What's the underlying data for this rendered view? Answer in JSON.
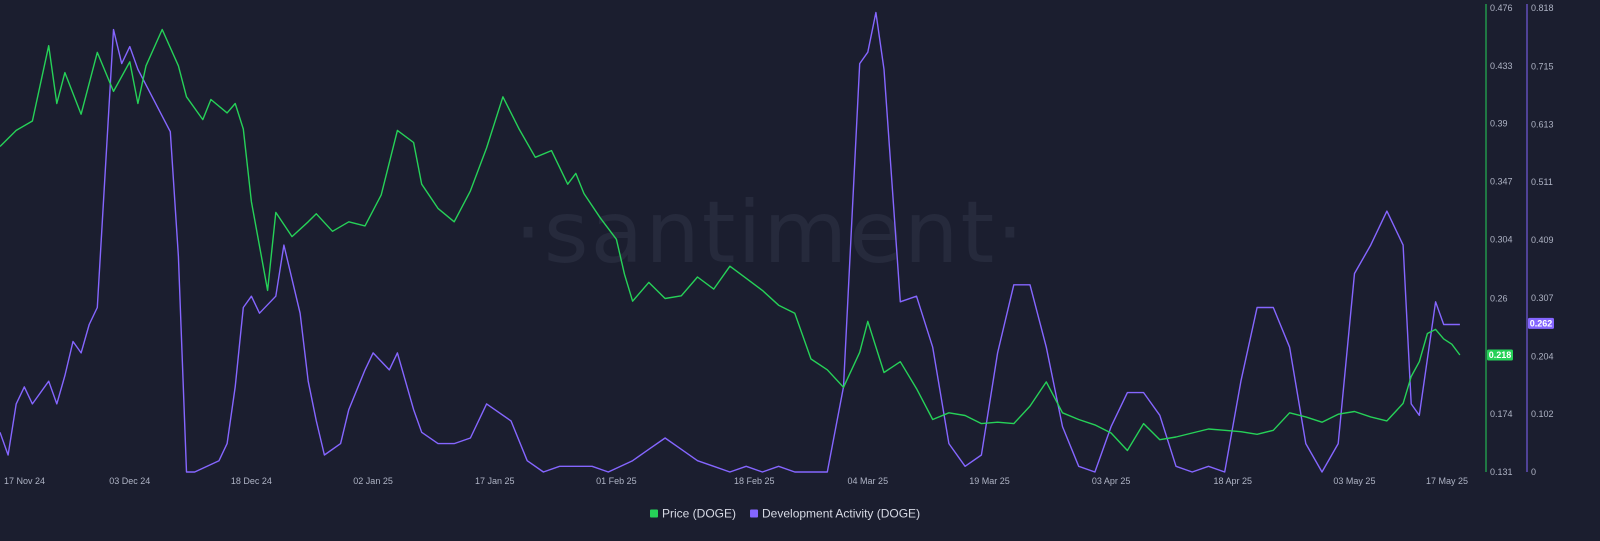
{
  "watermark": "·santiment·",
  "colors": {
    "background": "#1b1e2f",
    "price": "#26d158",
    "dev_activity": "#8566ff",
    "axis_price": "#26d158",
    "axis_dev": "#8566ff"
  },
  "chart_data": {
    "type": "line",
    "title": "",
    "x_tick_labels": [
      "17 Nov 24",
      "03 Dec 24",
      "18 Dec 24",
      "02 Jan 25",
      "17 Jan 25",
      "01 Feb 25",
      "18 Feb 25",
      "04 Mar 25",
      "19 Mar 25",
      "03 Apr 25",
      "18 Apr 25",
      "03 May 25",
      "17 May 25"
    ],
    "x_range": [
      "2024-11-17",
      "2025-05-17"
    ],
    "grid": false,
    "legend_placement": "bottom-center",
    "price_axis": {
      "side": "right",
      "ylim": [
        0.131,
        0.476
      ],
      "ticks": [
        "0.476",
        "0.433",
        "0.39",
        "0.347",
        "0.304",
        "0.26",
        "0.217",
        "0.174",
        "0.131"
      ]
    },
    "dev_axis": {
      "side": "right",
      "ylim": [
        0,
        0.818
      ],
      "ticks": [
        "0.818",
        "0.715",
        "0.613",
        "0.511",
        "0.409",
        "0.307",
        "0.204",
        "0.102",
        "0"
      ]
    },
    "current_values": {
      "price": "0.218",
      "dev_activity": "0.262"
    },
    "series": [
      {
        "name": "Price (DOGE)",
        "axis": "price",
        "x": [
          "2024-11-17",
          "2024-11-19",
          "2024-11-21",
          "2024-11-23",
          "2024-11-24",
          "2024-11-25",
          "2024-11-27",
          "2024-11-29",
          "2024-12-01",
          "2024-12-03",
          "2024-12-04",
          "2024-12-05",
          "2024-12-07",
          "2024-12-09",
          "2024-12-10",
          "2024-12-12",
          "2024-12-13",
          "2024-12-15",
          "2024-12-16",
          "2024-12-17",
          "2024-12-18",
          "2024-12-20",
          "2024-12-21",
          "2024-12-23",
          "2024-12-25",
          "2024-12-26",
          "2024-12-28",
          "2024-12-30",
          "2025-01-01",
          "2025-01-03",
          "2025-01-05",
          "2025-01-07",
          "2025-01-08",
          "2025-01-10",
          "2025-01-12",
          "2025-01-14",
          "2025-01-16",
          "2025-01-18",
          "2025-01-20",
          "2025-01-22",
          "2025-01-24",
          "2025-01-26",
          "2025-01-27",
          "2025-01-28",
          "2025-01-30",
          "2025-02-01",
          "2025-02-02",
          "2025-02-03",
          "2025-02-05",
          "2025-02-07",
          "2025-02-09",
          "2025-02-11",
          "2025-02-13",
          "2025-02-15",
          "2025-02-17",
          "2025-02-19",
          "2025-02-21",
          "2025-02-23",
          "2025-02-25",
          "2025-02-27",
          "2025-03-01",
          "2025-03-03",
          "2025-03-04",
          "2025-03-06",
          "2025-03-08",
          "2025-03-10",
          "2025-03-12",
          "2025-03-14",
          "2025-03-16",
          "2025-03-18",
          "2025-03-20",
          "2025-03-22",
          "2025-03-24",
          "2025-03-26",
          "2025-03-28",
          "2025-03-30",
          "2025-04-01",
          "2025-04-03",
          "2025-04-05",
          "2025-04-07",
          "2025-04-09",
          "2025-04-11",
          "2025-04-13",
          "2025-04-15",
          "2025-04-17",
          "2025-04-19",
          "2025-04-21",
          "2025-04-23",
          "2025-04-25",
          "2025-04-27",
          "2025-04-29",
          "2025-05-01",
          "2025-05-03",
          "2025-05-05",
          "2025-05-07",
          "2025-05-09",
          "2025-05-10",
          "2025-05-11",
          "2025-05-12",
          "2025-05-13",
          "2025-05-14",
          "2025-05-15",
          "2025-05-16"
        ],
        "values": [
          0.373,
          0.385,
          0.392,
          0.448,
          0.405,
          0.428,
          0.397,
          0.443,
          0.414,
          0.436,
          0.405,
          0.433,
          0.46,
          0.433,
          0.41,
          0.393,
          0.408,
          0.398,
          0.405,
          0.386,
          0.332,
          0.266,
          0.324,
          0.306,
          0.317,
          0.323,
          0.31,
          0.317,
          0.314,
          0.337,
          0.385,
          0.376,
          0.345,
          0.327,
          0.317,
          0.34,
          0.372,
          0.41,
          0.386,
          0.365,
          0.37,
          0.345,
          0.353,
          0.338,
          0.32,
          0.304,
          0.278,
          0.258,
          0.272,
          0.26,
          0.262,
          0.276,
          0.267,
          0.284,
          0.275,
          0.266,
          0.255,
          0.249,
          0.215,
          0.207,
          0.194,
          0.22,
          0.243,
          0.205,
          0.213,
          0.193,
          0.17,
          0.175,
          0.173,
          0.167,
          0.168,
          0.167,
          0.18,
          0.198,
          0.175,
          0.17,
          0.166,
          0.16,
          0.147,
          0.167,
          0.155,
          0.157,
          0.16,
          0.163,
          0.162,
          0.161,
          0.159,
          0.162,
          0.175,
          0.172,
          0.168,
          0.174,
          0.176,
          0.172,
          0.169,
          0.182,
          0.202,
          0.213,
          0.234,
          0.237,
          0.23,
          0.226,
          0.218
        ]
      },
      {
        "name": "Development Activity (DOGE)",
        "axis": "dev",
        "x": [
          "2024-11-17",
          "2024-11-18",
          "2024-11-19",
          "2024-11-20",
          "2024-11-21",
          "2024-11-23",
          "2024-11-24",
          "2024-11-25",
          "2024-11-26",
          "2024-11-27",
          "2024-11-28",
          "2024-11-29",
          "2024-12-01",
          "2024-12-02",
          "2024-12-03",
          "2024-12-04",
          "2024-12-08",
          "2024-12-09",
          "2024-12-10",
          "2024-12-11",
          "2024-12-14",
          "2024-12-15",
          "2024-12-16",
          "2024-12-17",
          "2024-12-18",
          "2024-12-19",
          "2024-12-21",
          "2024-12-22",
          "2024-12-24",
          "2024-12-25",
          "2024-12-26",
          "2024-12-27",
          "2024-12-29",
          "2024-12-30",
          "2025-01-01",
          "2025-01-02",
          "2025-01-04",
          "2025-01-05",
          "2025-01-07",
          "2025-01-08",
          "2025-01-10",
          "2025-01-12",
          "2025-01-14",
          "2025-01-16",
          "2025-01-19",
          "2025-01-21",
          "2025-01-23",
          "2025-01-25",
          "2025-01-27",
          "2025-01-29",
          "2025-01-31",
          "2025-02-03",
          "2025-02-05",
          "2025-02-07",
          "2025-02-09",
          "2025-02-11",
          "2025-02-13",
          "2025-02-15",
          "2025-02-17",
          "2025-02-19",
          "2025-02-21",
          "2025-02-23",
          "2025-02-25",
          "2025-02-27",
          "2025-03-01",
          "2025-03-03",
          "2025-03-04",
          "2025-03-05",
          "2025-03-06",
          "2025-03-08",
          "2025-03-10",
          "2025-03-12",
          "2025-03-14",
          "2025-03-16",
          "2025-03-18",
          "2025-03-20",
          "2025-03-22",
          "2025-03-24",
          "2025-03-26",
          "2025-03-28",
          "2025-03-30",
          "2025-04-01",
          "2025-04-03",
          "2025-04-05",
          "2025-04-07",
          "2025-04-09",
          "2025-04-11",
          "2025-04-13",
          "2025-04-15",
          "2025-04-17",
          "2025-04-19",
          "2025-04-21",
          "2025-04-23",
          "2025-04-25",
          "2025-04-27",
          "2025-04-29",
          "2025-05-01",
          "2025-05-03",
          "2025-05-05",
          "2025-05-07",
          "2025-05-09",
          "2025-05-10",
          "2025-05-11",
          "2025-05-13",
          "2025-05-14",
          "2025-05-15",
          "2025-05-16"
        ],
        "values": [
          0.07,
          0.03,
          0.12,
          0.15,
          0.12,
          0.16,
          0.12,
          0.17,
          0.23,
          0.21,
          0.26,
          0.29,
          0.78,
          0.72,
          0.75,
          0.71,
          0.6,
          0.38,
          0.0,
          0.0,
          0.02,
          0.05,
          0.15,
          0.29,
          0.31,
          0.28,
          0.31,
          0.4,
          0.28,
          0.16,
          0.09,
          0.03,
          0.05,
          0.11,
          0.18,
          0.21,
          0.18,
          0.21,
          0.11,
          0.07,
          0.05,
          0.05,
          0.06,
          0.12,
          0.09,
          0.02,
          0.0,
          0.01,
          0.01,
          0.01,
          0.0,
          0.02,
          0.04,
          0.06,
          0.04,
          0.02,
          0.01,
          0.0,
          0.01,
          0.0,
          0.01,
          0.0,
          0.0,
          0.0,
          0.15,
          0.72,
          0.74,
          0.81,
          0.71,
          0.3,
          0.31,
          0.22,
          0.05,
          0.01,
          0.03,
          0.21,
          0.33,
          0.33,
          0.22,
          0.08,
          0.01,
          0.0,
          0.08,
          0.14,
          0.14,
          0.1,
          0.01,
          0.0,
          0.01,
          0.0,
          0.16,
          0.29,
          0.29,
          0.22,
          0.05,
          0.0,
          0.05,
          0.35,
          0.4,
          0.46,
          0.4,
          0.12,
          0.1,
          0.3,
          0.26,
          0.26,
          0.26
        ]
      }
    ]
  },
  "legend": [
    {
      "label": "Price (DOGE)",
      "color": "#26d158"
    },
    {
      "label": "Development Activity (DOGE)",
      "color": "#8566ff"
    }
  ]
}
